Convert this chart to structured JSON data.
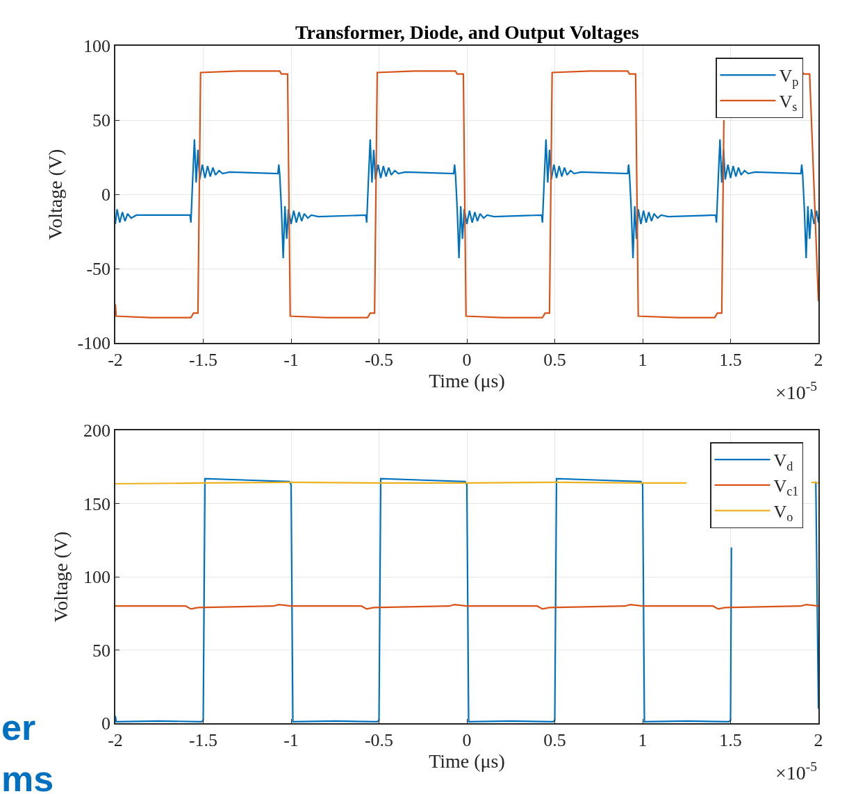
{
  "chart_data": [
    {
      "type": "line",
      "title": "Transformer, Diode, and Output Voltages",
      "xlabel": "Time (μs)",
      "ylabel": "Voltage (V)",
      "xlim": [
        -2,
        2
      ],
      "xticks": [
        -2,
        -1.5,
        -1,
        -0.5,
        0,
        0.5,
        1,
        1.5,
        2
      ],
      "ylim": [
        -100,
        100
      ],
      "yticks": [
        -100,
        -50,
        0,
        50,
        100
      ],
      "grid": true,
      "legend": "top right",
      "annotations": [
        "×10$^{-5}$"
      ],
      "series": [
        {
          "name": "V$_{p}$",
          "color": "#0072bd",
          "x": [
            -2,
            -1.99,
            -1.975,
            -1.96,
            -1.945,
            -1.93,
            -1.91,
            -1.88,
            -1.8,
            -1.575,
            -1.57,
            -1.56,
            -1.55,
            -1.54,
            -1.53,
            -1.52,
            -1.505,
            -1.49,
            -1.475,
            -1.46,
            -1.445,
            -1.43,
            -1.41,
            -1.39,
            -1.35,
            -1.075,
            -1.07,
            -1.065,
            -1.055,
            -1.045,
            -1.035,
            -1.025,
            -1.015,
            -1,
            -0.985,
            -0.97,
            -0.955,
            -0.94,
            -0.925,
            -0.905,
            -0.885,
            -0.845,
            -0.575,
            -0.57,
            -0.56,
            -0.55,
            -0.54,
            -0.53,
            -0.52,
            -0.505,
            -0.49,
            -0.475,
            -0.46,
            -0.445,
            -0.43,
            -0.41,
            -0.39,
            -0.35,
            -0.075,
            -0.07,
            -0.065,
            -0.055,
            -0.045,
            -0.035,
            -0.025,
            -0.015,
            0,
            0.015,
            0.03,
            0.045,
            0.06,
            0.075,
            0.095,
            0.115,
            0.155,
            0.425,
            0.43,
            0.44,
            0.45,
            0.46,
            0.47,
            0.48,
            0.495,
            0.51,
            0.525,
            0.54,
            0.555,
            0.57,
            0.59,
            0.61,
            0.65,
            0.915,
            0.92,
            0.925,
            0.935,
            0.945,
            0.955,
            0.965,
            0.975,
            0.99,
            1.005,
            1.02,
            1.035,
            1.05,
            1.065,
            1.085,
            1.105,
            1.145,
            1.415,
            1.42,
            1.43,
            1.44,
            1.45,
            1.46,
            1.47,
            1.485,
            1.5,
            1.515,
            1.53,
            1.545,
            1.56,
            1.58,
            1.6,
            1.64,
            1.9,
            1.905,
            1.91,
            1.92,
            1.93,
            1.94,
            1.95,
            1.96,
            1.975,
            1.99,
            2
          ],
          "values": [
            -20,
            -10,
            -19,
            -12,
            -18,
            -13,
            -16,
            -14,
            -14,
            -14,
            -19,
            10,
            37,
            8,
            30,
            10,
            20,
            11,
            19,
            12,
            18,
            13,
            16,
            14,
            15,
            14,
            20,
            14,
            -10,
            -43,
            -8,
            -30,
            -10,
            -20,
            -11,
            -19,
            -12,
            -18,
            -13,
            -16,
            -14,
            -15,
            -14,
            -19,
            10,
            37,
            8,
            30,
            10,
            20,
            11,
            19,
            12,
            18,
            13,
            16,
            14,
            15,
            14,
            20,
            14,
            -10,
            -43,
            -8,
            -30,
            -10,
            -20,
            -11,
            -19,
            -12,
            -18,
            -13,
            -16,
            -14,
            -15,
            -14,
            -19,
            10,
            37,
            8,
            30,
            10,
            20,
            11,
            19,
            12,
            18,
            13,
            16,
            14,
            15,
            14,
            20,
            14,
            -10,
            -43,
            -8,
            -30,
            -10,
            -20,
            -11,
            -19,
            -12,
            -18,
            -13,
            -16,
            -14,
            -15,
            -14,
            -19,
            10,
            37,
            8,
            30,
            10,
            20,
            11,
            19,
            12,
            18,
            13,
            16,
            14,
            15,
            14,
            20,
            14,
            -10,
            -43,
            -8,
            -30,
            -10,
            -20,
            -11,
            -19
          ]
        },
        {
          "name": "V$_{s}$",
          "color": "#d95319",
          "x": [
            -2,
            -1.995,
            -1.8,
            -1.57,
            -1.555,
            -1.53,
            -1.515,
            -1.3,
            -1.065,
            -1.055,
            -1.02,
            -1.005,
            -0.8,
            -0.565,
            -0.55,
            -0.525,
            -0.51,
            -0.3,
            -0.065,
            -0.055,
            -0.02,
            -0.005,
            0.2,
            0.43,
            0.445,
            0.47,
            0.485,
            0.7,
            0.915,
            0.925,
            0.96,
            0.975,
            1.2,
            1.41,
            1.425,
            1.45,
            1.462,
            1.465,
            1.7,
            1.905,
            1.915,
            1.95,
            2
          ],
          "values": [
            -74,
            -82,
            -83,
            -83,
            -80,
            -80,
            82,
            83,
            83,
            81,
            81,
            -82,
            -83,
            -83,
            -80,
            -80,
            82,
            83,
            83,
            81,
            81,
            -82,
            -83,
            -83,
            -80,
            -80,
            82,
            83,
            83,
            81,
            81,
            -82,
            -83,
            -83,
            -80,
            -80,
            50,
            null,
            null,
            83,
            81,
            81,
            -72
          ]
        }
      ]
    },
    {
      "type": "line",
      "xlabel": "Time (μs)",
      "ylabel": "Voltage (V)",
      "xlim": [
        -2,
        2
      ],
      "xticks": [
        -2,
        -1.5,
        -1,
        -0.5,
        0,
        0.5,
        1,
        1.5,
        2
      ],
      "ylim": [
        0,
        200
      ],
      "yticks": [
        0,
        50,
        100,
        150,
        200
      ],
      "grid": true,
      "legend": "top right",
      "annotations": [
        "×10$^{-5}$",
        "er",
        "ms"
      ],
      "series": [
        {
          "name": "V$_{d}$",
          "color": "#0072bd",
          "x": [
            -2,
            -1.995,
            -1.75,
            -1.51,
            -1.5,
            -1.49,
            -1.25,
            -1.01,
            -1,
            -0.99,
            -0.75,
            -0.51,
            -0.5,
            -0.49,
            -0.25,
            -0.01,
            0,
            0.01,
            0.25,
            0.49,
            0.5,
            0.51,
            0.75,
            0.99,
            1,
            1.01,
            1.25,
            1.49,
            1.5,
            1.505,
            1.51,
            1.75,
            1.985,
            2
          ],
          "values": [
            5,
            1,
            1.5,
            1,
            2,
            167,
            166,
            165,
            163,
            1,
            1.5,
            1,
            2,
            167,
            166,
            165,
            163,
            1,
            1.5,
            1,
            2,
            167,
            166,
            165,
            163,
            1,
            1.5,
            1,
            2,
            120,
            null,
            null,
            165,
            10
          ]
        },
        {
          "name": "V$_{c1}$",
          "color": "#d95319",
          "x": [
            -2,
            -1.6,
            -1.57,
            -1.53,
            -1.1,
            -1.07,
            -1,
            -0.6,
            -0.57,
            -0.53,
            -0.1,
            -0.07,
            0,
            0.4,
            0.43,
            0.47,
            0.9,
            0.93,
            1,
            1.4,
            1.43,
            1.47,
            1.9,
            1.93,
            2
          ],
          "values": [
            80,
            80,
            78,
            79,
            80,
            81,
            80,
            80,
            78,
            79,
            80,
            81,
            80,
            80,
            78,
            79,
            80,
            81,
            80,
            80,
            78,
            79,
            80,
            81,
            80
          ]
        },
        {
          "name": "V$_{o}$",
          "color": "#edb120",
          "x": [
            -2,
            -1.5,
            -1,
            -0.5,
            0,
            0.5,
            1,
            1.25,
            1.5,
            1.96,
            2
          ],
          "values": [
            163.5,
            164,
            164.5,
            164,
            164,
            164.5,
            164,
            164,
            null,
            164.5,
            164
          ]
        }
      ]
    }
  ]
}
